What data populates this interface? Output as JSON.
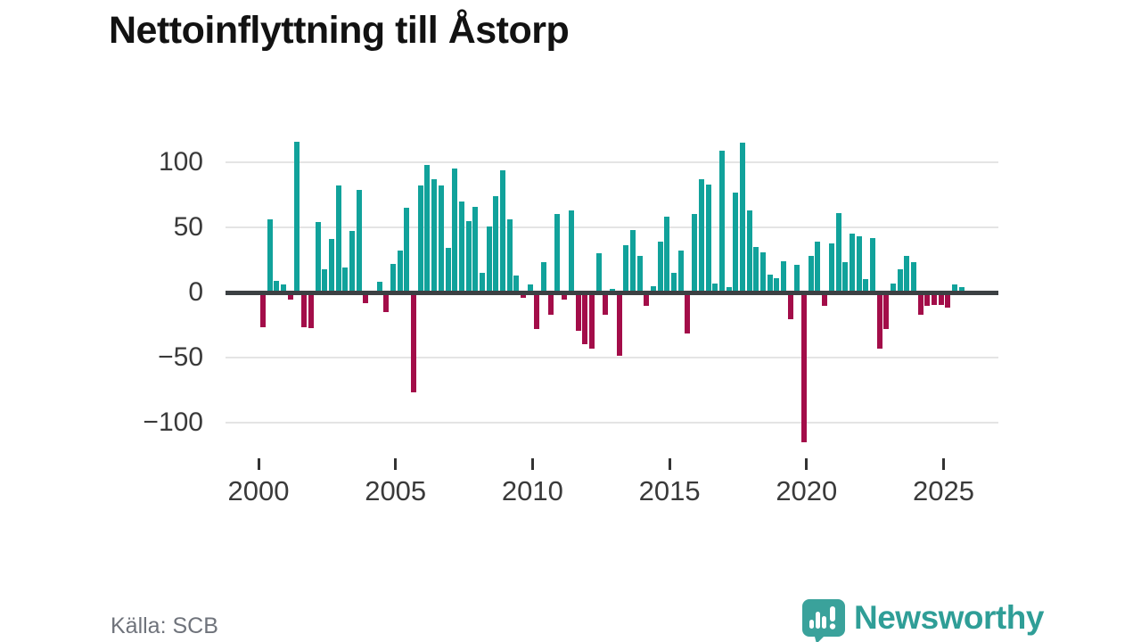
{
  "title": "Nettoinflyttning till Åstorp",
  "source": "Källa: SCB",
  "brand": {
    "name": "Newsworthy",
    "icon": "speech-bubble-bar-chart-icon",
    "color": "#2f9e97"
  },
  "colors": {
    "positive_bar": "#11a29b",
    "negative_bar": "#a30d49",
    "zero_line": "#3c4043",
    "gridline": "#e4e4e4",
    "title_text": "#121212",
    "axis_text": "#3a3a3a",
    "source_text": "#6f737b",
    "background": "#ffffff"
  },
  "chart_data": {
    "type": "bar",
    "title": "Nettoinflyttning till Åstorp",
    "xlabel": "",
    "ylabel": "",
    "frequency": "quarterly",
    "x_start": {
      "year": 2000,
      "quarter": 1
    },
    "x_end": {
      "year": 2025,
      "quarter": 3
    },
    "ylim": [
      -125,
      130
    ],
    "grid": "horizontal",
    "legend": "none",
    "y_ticks": [
      100,
      50,
      0,
      -50,
      -100
    ],
    "y_tick_labels": [
      "100",
      "50",
      "0",
      "−50",
      "−100"
    ],
    "x_tick_years": [
      2000,
      2005,
      2010,
      2015,
      2020,
      2025
    ],
    "x_tick_labels": [
      "2000",
      "2005",
      "2010",
      "2015",
      "2020",
      "2025"
    ],
    "values": [
      -25,
      56,
      9,
      6,
      -4,
      116,
      -25,
      -26,
      54,
      18,
      41,
      82,
      19,
      47,
      79,
      -7,
      0,
      8,
      -14,
      22,
      32,
      65,
      -75,
      82,
      98,
      87,
      82,
      34,
      95,
      70,
      55,
      66,
      15,
      51,
      74,
      94,
      56,
      13,
      -3,
      6,
      -27,
      23,
      -16,
      60,
      -4,
      63,
      -28,
      -38,
      -42,
      30,
      -16,
      3,
      -47,
      36,
      48,
      28,
      -9,
      5,
      39,
      58,
      15,
      32,
      -30,
      60,
      87,
      83,
      7,
      109,
      4,
      77,
      115,
      63,
      35,
      31,
      14,
      11,
      24,
      -19,
      21,
      -114,
      28,
      39,
      -9,
      38,
      61,
      23,
      45,
      43,
      10,
      42,
      -42,
      -27,
      7,
      18,
      28,
      23,
      -16,
      -9,
      -8,
      -8,
      -10,
      6,
      4
    ]
  }
}
